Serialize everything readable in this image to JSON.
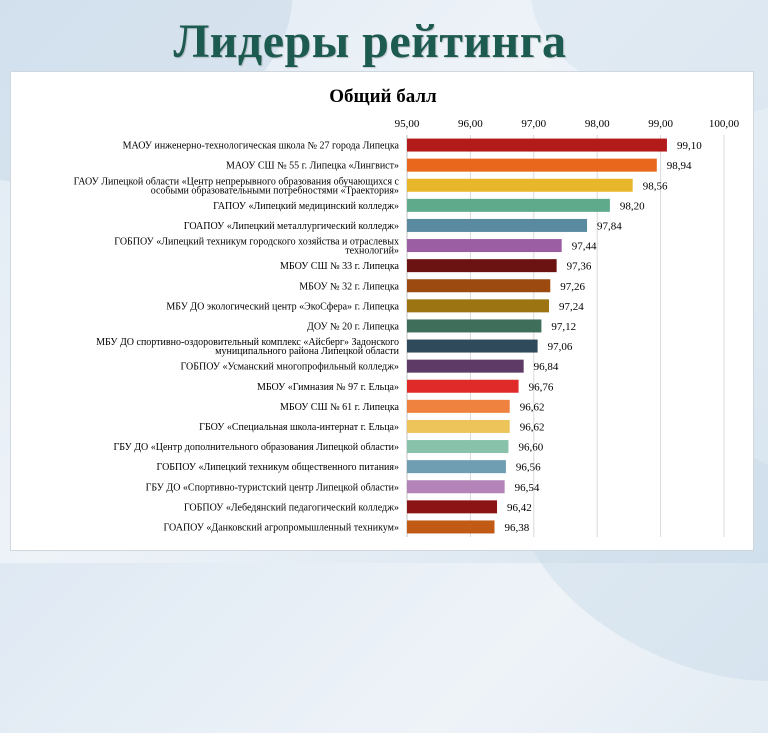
{
  "slide": {
    "title": "Лидеры рейтинга"
  },
  "chart_data": {
    "type": "bar",
    "orientation": "horizontal",
    "title": "Общий балл",
    "xlim": [
      95,
      100
    ],
    "ticks": [
      "95,00",
      "96,00",
      "97,00",
      "98,00",
      "99,00",
      "100,00"
    ],
    "tick_values": [
      95,
      96,
      97,
      98,
      99,
      100
    ],
    "axis_position": "top",
    "grid": true,
    "categories": [
      [
        "МАОУ инженерно-технологическая школа № 27 города Липецка"
      ],
      [
        "МАОУ СШ № 55 г. Липецка «Лингвист»"
      ],
      [
        "ГАОУ Липецкой области «Центр непрерывного образования обучающихся с",
        "особыми образовательными потребностями «Траектория»"
      ],
      [
        "ГАПОУ «Липецкий медицинский колледж»"
      ],
      [
        "ГОАПОУ «Липецкий металлургический колледж»"
      ],
      [
        "ГОБПОУ «Липецкий техникум городского хозяйства и отраслевых",
        "технологий»"
      ],
      [
        "МБОУ СШ № 33 г. Липецка"
      ],
      [
        "МБОУ № 32 г. Липецка"
      ],
      [
        "МБУ ДО экологический центр «ЭкоСфера» г. Липецка"
      ],
      [
        "ДОУ № 20 г. Липецка"
      ],
      [
        "МБУ ДО спортивно-оздоровительный комплекс «Айсберг» Задонского",
        "муниципального района Липецкой области"
      ],
      [
        "ГОБПОУ «Усманский многопрофильный колледж»"
      ],
      [
        "МБОУ «Гимназия № 97 г. Ельца»"
      ],
      [
        "МБОУ СШ № 61 г. Липецка"
      ],
      [
        "ГБОУ «Специальная школа-интернат г. Ельца»"
      ],
      [
        "ГБУ ДО «Центр дополнительного образования Липецкой области»"
      ],
      [
        "ГОБПОУ «Липецкий техникум общественного питания»"
      ],
      [
        "ГБУ ДО «Спортивно-туристский центр Липецкой области»"
      ],
      [
        "ГОБПОУ «Лебедянский педагогический колледж»"
      ],
      [
        "ГОАПОУ «Данковский агропромышленный техникум»"
      ]
    ],
    "values": [
      99.1,
      98.94,
      98.56,
      98.2,
      97.84,
      97.44,
      97.36,
      97.26,
      97.24,
      97.12,
      97.06,
      96.84,
      96.76,
      96.62,
      96.62,
      96.6,
      96.56,
      96.54,
      96.42,
      96.38
    ],
    "value_labels": [
      "99,10",
      "98,94",
      "98,56",
      "98,20",
      "97,84",
      "97,44",
      "97,36",
      "97,26",
      "97,24",
      "97,12",
      "97,06",
      "96,84",
      "96,76",
      "96,62",
      "96,62",
      "96,60",
      "96,56",
      "96,54",
      "96,42",
      "96,38"
    ],
    "colors": [
      "#b31b1b",
      "#e8671c",
      "#e8b62a",
      "#5faa8a",
      "#5a8aa0",
      "#9b5ea3",
      "#6b1212",
      "#9c4a0f",
      "#9c7412",
      "#3f6e5a",
      "#2f4a5a",
      "#5e3a66",
      "#e02a2a",
      "#f08240",
      "#ecc45a",
      "#88c2aa",
      "#6f9db2",
      "#b483b8",
      "#8c1414",
      "#c05a14"
    ]
  }
}
